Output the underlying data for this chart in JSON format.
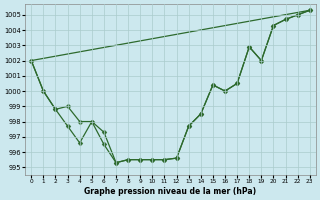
{
  "title": "Graphe pression niveau de la mer (hPa)",
  "bg_color": "#cce8ee",
  "grid_color": "#aacccc",
  "line_color": "#2d6a2d",
  "series_curved1": [
    1002,
    1000,
    998.8,
    999.0,
    998.0,
    998.0,
    997.3,
    995.3,
    995.5,
    995.5,
    995.5,
    995.5,
    995.6,
    997.7,
    998.5,
    1000.4,
    1000.0,
    1000.5,
    1002.9,
    1002.0,
    1004.3,
    1004.7,
    1005.0,
    1005.3
  ],
  "series_curved2": [
    1002,
    1000,
    998.8,
    997.7,
    996.6,
    998.0,
    996.5,
    995.3,
    995.5,
    995.5,
    995.5,
    995.5,
    995.6,
    997.7,
    998.5,
    1000.4,
    1000.0,
    1000.5,
    1002.9,
    1002.0,
    1004.3,
    1004.7,
    1005.0,
    1005.3
  ],
  "series_straight": [
    [
      0,
      1002
    ],
    [
      23,
      1005.3
    ]
  ],
  "ylim": [
    994.5,
    1005.7
  ],
  "yticks": [
    995,
    996,
    997,
    998,
    999,
    1000,
    1001,
    1002,
    1003,
    1004,
    1005
  ],
  "xlim": [
    -0.5,
    23.5
  ],
  "xticks": [
    0,
    1,
    2,
    3,
    4,
    5,
    6,
    7,
    8,
    9,
    10,
    11,
    12,
    13,
    14,
    15,
    16,
    17,
    18,
    19,
    20,
    21,
    22,
    23
  ]
}
